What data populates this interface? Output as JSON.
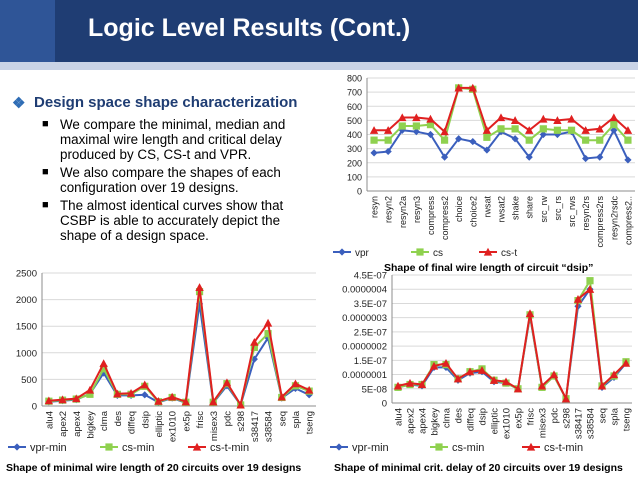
{
  "slide": {
    "title": "Logic Level Results (Cont.)",
    "heading": "Design space shape characterization",
    "bullets": [
      "We compare the minimal, median and maximal wire length and critical delay produced by CS, CS-t and VPR.",
      "We also compare the shapes of each configuration over 19 designs.",
      "The almost identical curves show that CSBP is able to accurately depict the shape of a design space."
    ],
    "captions": {
      "top_right": "Shape of final wire length of circuit “dsip”",
      "bottom_left": "Shape of minimal wire length of 20 circuits over 19 designs",
      "bottom_right": "Shape of minimal crit. delay of 20 circuits over 19 designs"
    }
  },
  "chart_data": [
    {
      "type": "line",
      "title": "Shape of final wire length of circuit “dsip”",
      "categories": [
        "resyn",
        "resyn2",
        "resyn2a",
        "resyn3",
        "compress",
        "compress2",
        "choice",
        "choice2",
        "rwsat",
        "rwsat2",
        "shake",
        "share",
        "src_rw",
        "src_rs",
        "src_rws",
        "resyn2rs",
        "compress2rs",
        "resyn2rsdc",
        "compress2.."
      ],
      "ylim": [
        0,
        800
      ],
      "yticks": [
        0,
        100,
        200,
        300,
        400,
        500,
        600,
        700,
        800
      ],
      "series": [
        {
          "name": "vpr",
          "color": "#3b5fbd",
          "marker": "diamond",
          "values": [
            270,
            280,
            430,
            420,
            400,
            240,
            370,
            350,
            290,
            420,
            370,
            240,
            400,
            400,
            420,
            230,
            240,
            430,
            220
          ]
        },
        {
          "name": "cs",
          "color": "#8fd14f",
          "marker": "square",
          "values": [
            360,
            360,
            460,
            460,
            470,
            360,
            730,
            720,
            380,
            440,
            440,
            360,
            440,
            430,
            430,
            360,
            360,
            470,
            360
          ]
        },
        {
          "name": "cs-t",
          "color": "#e02020",
          "marker": "triangle",
          "values": [
            430,
            430,
            520,
            520,
            510,
            420,
            730,
            730,
            430,
            520,
            500,
            430,
            510,
            500,
            510,
            430,
            440,
            520,
            430
          ]
        }
      ],
      "legend": "bottom"
    },
    {
      "type": "line",
      "title": "Shape of minimal wire length of 20 circuits over 19 designs",
      "categories": [
        "alu4",
        "apex2",
        "apex4",
        "bigkey",
        "clma",
        "des",
        "diffeq",
        "dsip",
        "elliptic",
        "ex1010",
        "ex5p",
        "frisc",
        "misex3",
        "pdc",
        "s298",
        "s38417",
        "s38584",
        "seq",
        "spla",
        "tseng"
      ],
      "ylim": [
        0,
        2500
      ],
      "yticks": [
        0,
        500,
        1000,
        1500,
        2000,
        2500
      ],
      "series": [
        {
          "name": "vpr-min",
          "color": "#3b5fbd",
          "marker": "diamond",
          "values": [
            80,
            100,
            120,
            230,
            620,
            200,
            200,
            210,
            70,
            150,
            60,
            1920,
            60,
            380,
            20,
            880,
            1280,
            150,
            330,
            210
          ]
        },
        {
          "name": "cs-min",
          "color": "#8fd14f",
          "marker": "square",
          "values": [
            90,
            110,
            130,
            220,
            700,
            220,
            220,
            370,
            80,
            160,
            70,
            2150,
            70,
            420,
            20,
            1100,
            1360,
            160,
            380,
            280
          ]
        },
        {
          "name": "cs-t-min",
          "color": "#e02020",
          "marker": "triangle",
          "values": [
            100,
            120,
            140,
            300,
            800,
            230,
            240,
            400,
            90,
            170,
            80,
            2230,
            80,
            440,
            20,
            1200,
            1560,
            170,
            420,
            300
          ]
        }
      ],
      "legend": "bottom"
    },
    {
      "type": "line",
      "title": "Shape of minimal crit. delay of 20 circuits over 19 designs",
      "categories": [
        "alu4",
        "apex2",
        "apex4",
        "bigkey",
        "clma",
        "des",
        "diffeq",
        "dsip",
        "elliptic",
        "ex1010",
        "ex5p",
        "frisc",
        "misex3",
        "pdc",
        "s298",
        "s38417",
        "s38584",
        "seq",
        "spla",
        "tseng"
      ],
      "ylim": [
        0,
        4.5e-07
      ],
      "yticks": [
        0,
        5e-08,
        1e-07,
        1.5e-07,
        2e-07,
        2.5e-07,
        3e-07,
        3.5e-07,
        4e-07,
        4.5e-07
      ],
      "ytick_labels": [
        "0",
        "5E-08",
        "0.0000001",
        "1.5E-07",
        "0.0000002",
        "2.5E-07",
        "0.0000003",
        "3.5E-07",
        "0.0000004",
        "4.5E-07"
      ],
      "series": [
        {
          "name": "vpr-min",
          "color": "#3b5fbd",
          "marker": "diamond",
          "values": [
            5.5e-08,
            6.5e-08,
            6e-08,
            1.25e-07,
            1.25e-07,
            8e-08,
            1.05e-07,
            1.1e-07,
            7.5e-08,
            7e-08,
            5e-08,
            3.05e-07,
            5.5e-08,
            9.5e-08,
            1.5e-08,
            3.4e-07,
            4e-07,
            5.5e-08,
            9e-08,
            1.4e-07
          ]
        },
        {
          "name": "cs-min",
          "color": "#8fd14f",
          "marker": "square",
          "values": [
            5.5e-08,
            6.5e-08,
            6.5e-08,
            1.35e-07,
            1.35e-07,
            8.5e-08,
            1.1e-07,
            1.2e-07,
            8e-08,
            7e-08,
            5e-08,
            3.1e-07,
            5.5e-08,
            9.5e-08,
            1.5e-08,
            3.6e-07,
            4.3e-07,
            6e-08,
            9.5e-08,
            1.45e-07
          ]
        },
        {
          "name": "cs-t-min",
          "color": "#e02020",
          "marker": "triangle",
          "values": [
            6e-08,
            7e-08,
            6.5e-08,
            1.3e-07,
            1.4e-07,
            8.5e-08,
            1.1e-07,
            1.15e-07,
            8e-08,
            7.5e-08,
            5e-08,
            3.15e-07,
            6e-08,
            1e-07,
            1.5e-08,
            3.65e-07,
            4e-07,
            6e-08,
            1e-07,
            1.4e-07
          ]
        }
      ],
      "legend": "bottom"
    }
  ]
}
